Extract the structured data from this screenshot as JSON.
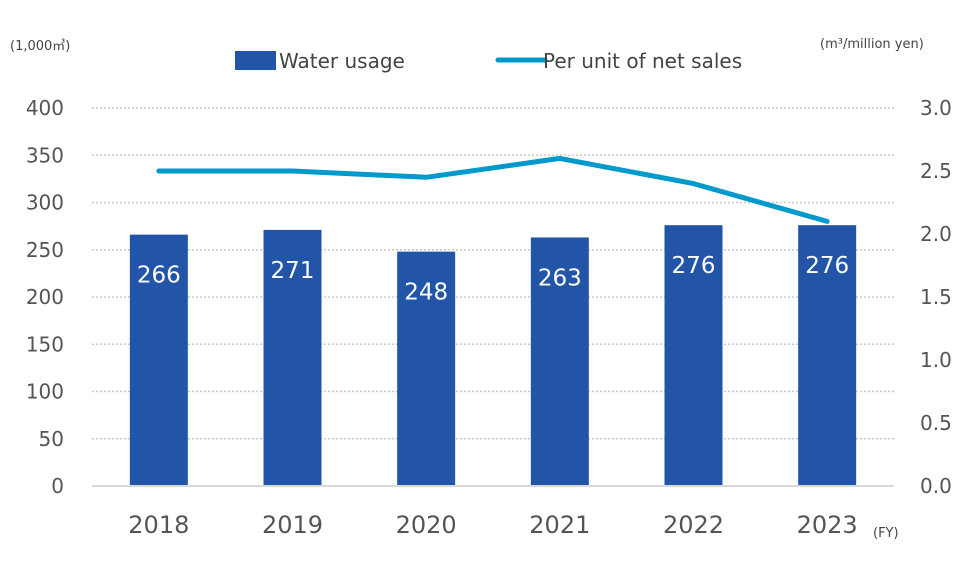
{
  "chart_data": {
    "type": "bar",
    "title": "",
    "categories": [
      "2018",
      "2019",
      "2020",
      "2021",
      "2022",
      "2023"
    ],
    "xlabel": "(FY)",
    "series": [
      {
        "name": "Water usage",
        "type": "bar",
        "axis": "left",
        "color": "#2255a8",
        "values": [
          266,
          271,
          248,
          263,
          276,
          276
        ],
        "data_labels": [
          "266",
          "271",
          "248",
          "263",
          "276",
          "276"
        ]
      },
      {
        "name": "Per unit of net sales",
        "type": "line",
        "axis": "right",
        "color": "#0099cc",
        "values": [
          2.5,
          2.5,
          2.45,
          2.6,
          2.4,
          2.1
        ]
      }
    ],
    "y_left": {
      "label": "(1,000㎥)",
      "ylim": [
        0,
        400
      ],
      "ticks": [
        "0",
        "50",
        "100",
        "150",
        "200",
        "250",
        "300",
        "350",
        "400"
      ]
    },
    "y_right": {
      "label": "(m³/million yen)",
      "ylim": [
        0,
        3.0
      ],
      "ticks": [
        "0.0",
        "0.5",
        "1.0",
        "1.5",
        "2.0",
        "2.5",
        "3.0"
      ]
    },
    "grid": true,
    "legend": "top-center"
  }
}
